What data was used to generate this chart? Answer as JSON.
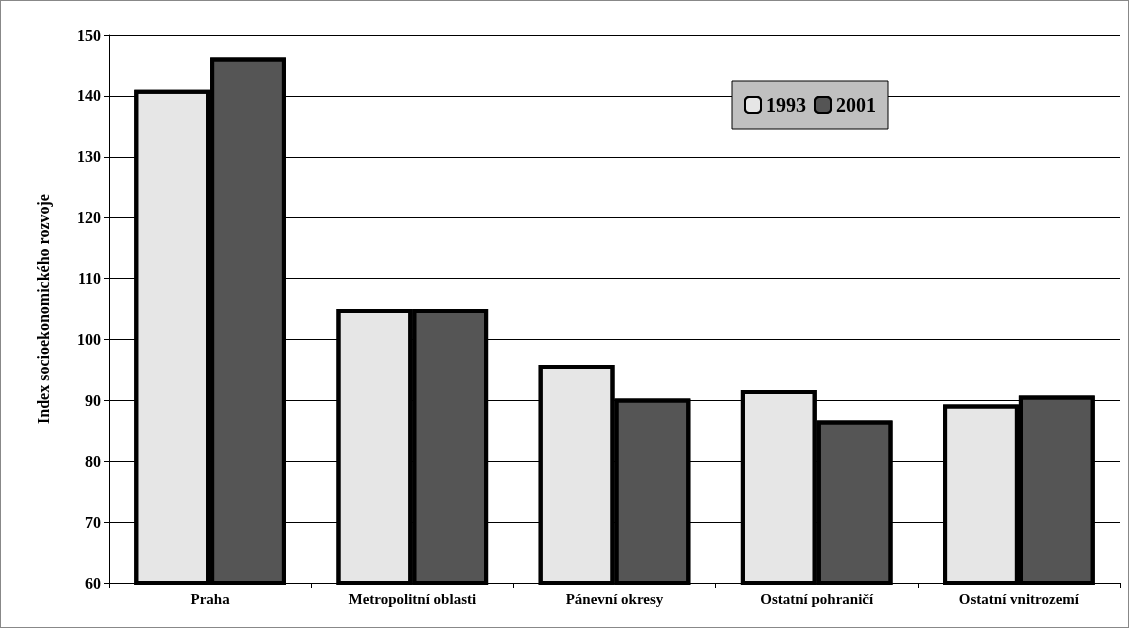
{
  "chart_data": {
    "type": "bar",
    "ylabel": "Index socioekonomického rozvoje",
    "categories": [
      "Praha",
      "Metropolitní oblasti",
      "Pánevní okresy",
      "Ostatní pohraničí",
      "Ostatní vnitrozemí"
    ],
    "series": [
      {
        "name": "1993",
        "color": "#e6e6e6",
        "values": [
          141,
          105,
          95.8,
          91.7,
          89.3
        ]
      },
      {
        "name": "2001",
        "color": "#555555",
        "values": [
          146.3,
          105,
          90.3,
          86.7,
          90.8
        ]
      }
    ],
    "ylim": [
      60,
      150
    ],
    "yticks": [
      60,
      70,
      80,
      90,
      100,
      110,
      120,
      130,
      140,
      150
    ],
    "grid": "y",
    "legend": "top right"
  }
}
